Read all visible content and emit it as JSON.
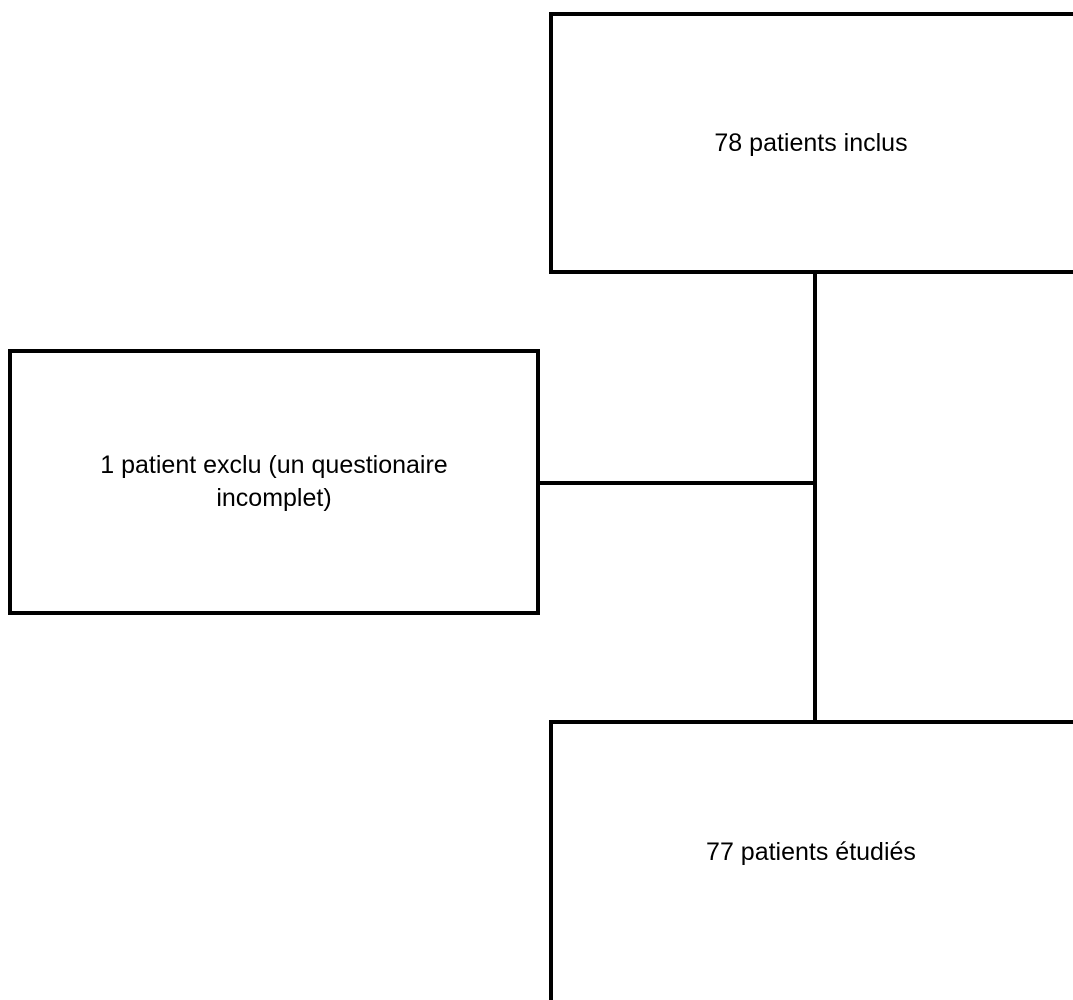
{
  "flowchart": {
    "included_label": "78 patients inclus",
    "excluded_label": "1 patient exclu (un questionaire incomplet)",
    "studied_label": "77 patients étudiés"
  },
  "colors": {
    "stroke": "#000000",
    "background": "#ffffff"
  }
}
